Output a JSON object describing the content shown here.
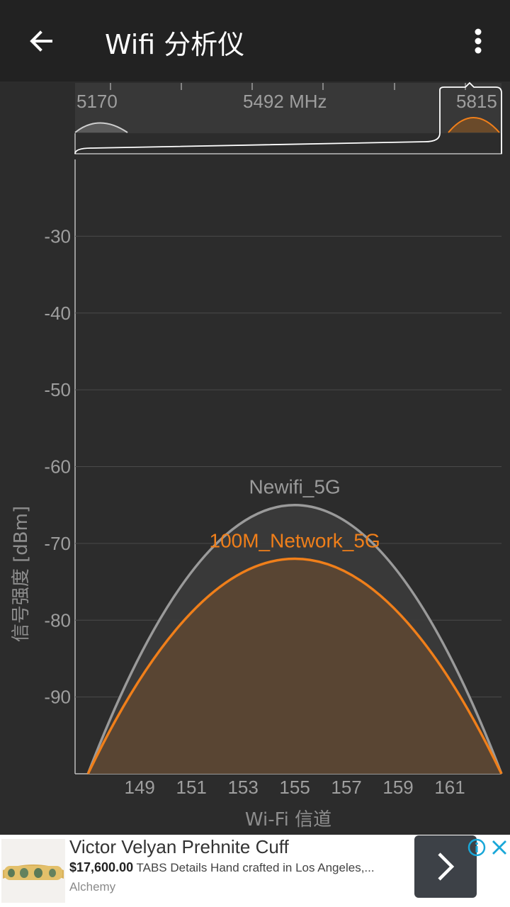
{
  "appbar": {
    "title": "Wifi 分析仪",
    "back_icon": "arrow-back-icon",
    "menu_icon": "more-vert-icon"
  },
  "navigator": {
    "labels": [
      "5170",
      "5492 MHz",
      "5815"
    ]
  },
  "colors": {
    "background": "#2c2c2c",
    "appbar": "#222222",
    "grid": "#4a4a4a",
    "axis_text": "#9e9e9e",
    "series_gray": "#9a9a9a",
    "series_orange": "#f07f1a"
  },
  "chart_data": {
    "type": "area",
    "ylabel": "信号强度 [dBm]",
    "xlabel": "Wi-Fi 信道",
    "ylim": [
      -100,
      -20
    ],
    "y_ticks": [
      -30,
      -40,
      -50,
      -60,
      -70,
      -80,
      -90
    ],
    "x_ticks": [
      149,
      151,
      153,
      155,
      157,
      159,
      161
    ],
    "xlim": [
      146.5,
      163
    ],
    "grid": true,
    "series": [
      {
        "name": "Newifi_5G",
        "center_channel": 155,
        "width_channels": 16,
        "peak": -65,
        "color": "#9a9a9a",
        "fill": "#3a3a3a"
      },
      {
        "name": "100M_Network_5G",
        "center_channel": 155,
        "width_channels": 16,
        "peak": -72,
        "color": "#f07f1a",
        "fill": "#5b4633"
      }
    ]
  },
  "ad": {
    "title": "Victor Velyan Prehnite Cuff",
    "price": "$17,600.00",
    "description": " TABS Details Hand crafted in Los Angeles,...",
    "advertiser": "Alchemy",
    "cta_icon": "chevron-right-icon",
    "info_icon": "info-icon",
    "close_icon": "close-icon"
  }
}
